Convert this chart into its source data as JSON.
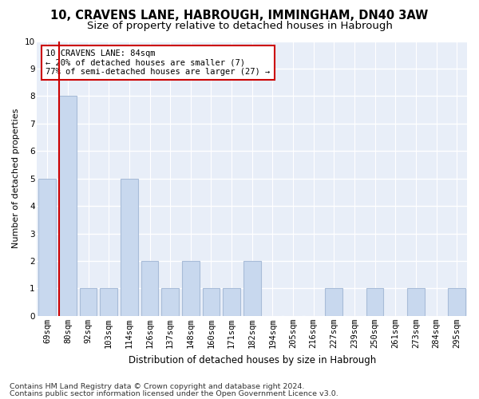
{
  "title1": "10, CRAVENS LANE, HABROUGH, IMMINGHAM, DN40 3AW",
  "title2": "Size of property relative to detached houses in Habrough",
  "xlabel": "Distribution of detached houses by size in Habrough",
  "ylabel": "Number of detached properties",
  "categories": [
    "69sqm",
    "80sqm",
    "92sqm",
    "103sqm",
    "114sqm",
    "126sqm",
    "137sqm",
    "148sqm",
    "160sqm",
    "171sqm",
    "182sqm",
    "194sqm",
    "205sqm",
    "216sqm",
    "227sqm",
    "239sqm",
    "250sqm",
    "261sqm",
    "273sqm",
    "284sqm",
    "295sqm"
  ],
  "values": [
    5,
    8,
    1,
    1,
    5,
    2,
    1,
    2,
    1,
    1,
    2,
    0,
    0,
    0,
    1,
    0,
    1,
    0,
    1,
    0,
    1
  ],
  "bar_color": "#c8d8ee",
  "bar_edgecolor": "#a8bcd8",
  "highlight_index": 1,
  "highlight_line_color": "#cc0000",
  "annotation_text": "10 CRAVENS LANE: 84sqm\n← 20% of detached houses are smaller (7)\n77% of semi-detached houses are larger (27) →",
  "annotation_box_color": "#ffffff",
  "annotation_box_edgecolor": "#cc0000",
  "ylim": [
    0,
    10
  ],
  "yticks": [
    0,
    1,
    2,
    3,
    4,
    5,
    6,
    7,
    8,
    9,
    10
  ],
  "footer1": "Contains HM Land Registry data © Crown copyright and database right 2024.",
  "footer2": "Contains public sector information licensed under the Open Government Licence v3.0.",
  "background_color": "#ffffff",
  "plot_background": "#e8eef8",
  "grid_color": "#ffffff",
  "title1_fontsize": 10.5,
  "title2_fontsize": 9.5,
  "xlabel_fontsize": 8.5,
  "ylabel_fontsize": 8,
  "tick_fontsize": 7.5,
  "footer_fontsize": 6.8,
  "ann_fontsize": 7.5
}
